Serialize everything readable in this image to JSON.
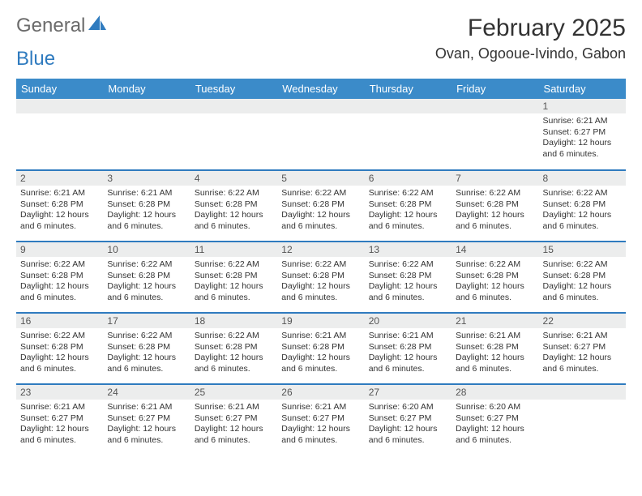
{
  "logo": {
    "text1": "General",
    "text2": "Blue"
  },
  "title": "February 2025",
  "location": "Ovan, Ogooue-Ivindo, Gabon",
  "header_bg": "#3b8bc9",
  "border_color": "#2f7bbf",
  "daynum_bg": "#eceded",
  "day_names": [
    "Sunday",
    "Monday",
    "Tuesday",
    "Wednesday",
    "Thursday",
    "Friday",
    "Saturday"
  ],
  "weeks": [
    [
      {
        "n": "",
        "sr": "",
        "ss": "",
        "dl": ""
      },
      {
        "n": "",
        "sr": "",
        "ss": "",
        "dl": ""
      },
      {
        "n": "",
        "sr": "",
        "ss": "",
        "dl": ""
      },
      {
        "n": "",
        "sr": "",
        "ss": "",
        "dl": ""
      },
      {
        "n": "",
        "sr": "",
        "ss": "",
        "dl": ""
      },
      {
        "n": "",
        "sr": "",
        "ss": "",
        "dl": ""
      },
      {
        "n": "1",
        "sr": "Sunrise: 6:21 AM",
        "ss": "Sunset: 6:27 PM",
        "dl": "Daylight: 12 hours and 6 minutes."
      }
    ],
    [
      {
        "n": "2",
        "sr": "Sunrise: 6:21 AM",
        "ss": "Sunset: 6:28 PM",
        "dl": "Daylight: 12 hours and 6 minutes."
      },
      {
        "n": "3",
        "sr": "Sunrise: 6:21 AM",
        "ss": "Sunset: 6:28 PM",
        "dl": "Daylight: 12 hours and 6 minutes."
      },
      {
        "n": "4",
        "sr": "Sunrise: 6:22 AM",
        "ss": "Sunset: 6:28 PM",
        "dl": "Daylight: 12 hours and 6 minutes."
      },
      {
        "n": "5",
        "sr": "Sunrise: 6:22 AM",
        "ss": "Sunset: 6:28 PM",
        "dl": "Daylight: 12 hours and 6 minutes."
      },
      {
        "n": "6",
        "sr": "Sunrise: 6:22 AM",
        "ss": "Sunset: 6:28 PM",
        "dl": "Daylight: 12 hours and 6 minutes."
      },
      {
        "n": "7",
        "sr": "Sunrise: 6:22 AM",
        "ss": "Sunset: 6:28 PM",
        "dl": "Daylight: 12 hours and 6 minutes."
      },
      {
        "n": "8",
        "sr": "Sunrise: 6:22 AM",
        "ss": "Sunset: 6:28 PM",
        "dl": "Daylight: 12 hours and 6 minutes."
      }
    ],
    [
      {
        "n": "9",
        "sr": "Sunrise: 6:22 AM",
        "ss": "Sunset: 6:28 PM",
        "dl": "Daylight: 12 hours and 6 minutes."
      },
      {
        "n": "10",
        "sr": "Sunrise: 6:22 AM",
        "ss": "Sunset: 6:28 PM",
        "dl": "Daylight: 12 hours and 6 minutes."
      },
      {
        "n": "11",
        "sr": "Sunrise: 6:22 AM",
        "ss": "Sunset: 6:28 PM",
        "dl": "Daylight: 12 hours and 6 minutes."
      },
      {
        "n": "12",
        "sr": "Sunrise: 6:22 AM",
        "ss": "Sunset: 6:28 PM",
        "dl": "Daylight: 12 hours and 6 minutes."
      },
      {
        "n": "13",
        "sr": "Sunrise: 6:22 AM",
        "ss": "Sunset: 6:28 PM",
        "dl": "Daylight: 12 hours and 6 minutes."
      },
      {
        "n": "14",
        "sr": "Sunrise: 6:22 AM",
        "ss": "Sunset: 6:28 PM",
        "dl": "Daylight: 12 hours and 6 minutes."
      },
      {
        "n": "15",
        "sr": "Sunrise: 6:22 AM",
        "ss": "Sunset: 6:28 PM",
        "dl": "Daylight: 12 hours and 6 minutes."
      }
    ],
    [
      {
        "n": "16",
        "sr": "Sunrise: 6:22 AM",
        "ss": "Sunset: 6:28 PM",
        "dl": "Daylight: 12 hours and 6 minutes."
      },
      {
        "n": "17",
        "sr": "Sunrise: 6:22 AM",
        "ss": "Sunset: 6:28 PM",
        "dl": "Daylight: 12 hours and 6 minutes."
      },
      {
        "n": "18",
        "sr": "Sunrise: 6:22 AM",
        "ss": "Sunset: 6:28 PM",
        "dl": "Daylight: 12 hours and 6 minutes."
      },
      {
        "n": "19",
        "sr": "Sunrise: 6:21 AM",
        "ss": "Sunset: 6:28 PM",
        "dl": "Daylight: 12 hours and 6 minutes."
      },
      {
        "n": "20",
        "sr": "Sunrise: 6:21 AM",
        "ss": "Sunset: 6:28 PM",
        "dl": "Daylight: 12 hours and 6 minutes."
      },
      {
        "n": "21",
        "sr": "Sunrise: 6:21 AM",
        "ss": "Sunset: 6:28 PM",
        "dl": "Daylight: 12 hours and 6 minutes."
      },
      {
        "n": "22",
        "sr": "Sunrise: 6:21 AM",
        "ss": "Sunset: 6:27 PM",
        "dl": "Daylight: 12 hours and 6 minutes."
      }
    ],
    [
      {
        "n": "23",
        "sr": "Sunrise: 6:21 AM",
        "ss": "Sunset: 6:27 PM",
        "dl": "Daylight: 12 hours and 6 minutes."
      },
      {
        "n": "24",
        "sr": "Sunrise: 6:21 AM",
        "ss": "Sunset: 6:27 PM",
        "dl": "Daylight: 12 hours and 6 minutes."
      },
      {
        "n": "25",
        "sr": "Sunrise: 6:21 AM",
        "ss": "Sunset: 6:27 PM",
        "dl": "Daylight: 12 hours and 6 minutes."
      },
      {
        "n": "26",
        "sr": "Sunrise: 6:21 AM",
        "ss": "Sunset: 6:27 PM",
        "dl": "Daylight: 12 hours and 6 minutes."
      },
      {
        "n": "27",
        "sr": "Sunrise: 6:20 AM",
        "ss": "Sunset: 6:27 PM",
        "dl": "Daylight: 12 hours and 6 minutes."
      },
      {
        "n": "28",
        "sr": "Sunrise: 6:20 AM",
        "ss": "Sunset: 6:27 PM",
        "dl": "Daylight: 12 hours and 6 minutes."
      },
      {
        "n": "",
        "sr": "",
        "ss": "",
        "dl": ""
      }
    ]
  ]
}
